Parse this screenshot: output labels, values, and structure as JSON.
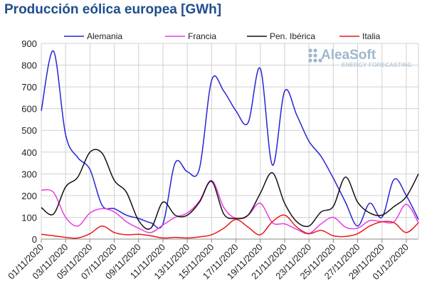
{
  "chart_data": {
    "type": "line",
    "title": "Producción eólica europea [GWh]",
    "xlabel": "",
    "ylabel": "",
    "ylim": [
      0,
      900
    ],
    "yticks": [
      "0",
      "100",
      "200",
      "300",
      "400",
      "500",
      "600",
      "700",
      "800",
      "900"
    ],
    "grid": true,
    "legend_position": "top",
    "xtick_labels": [
      "01/11/2020",
      "03/11/2020",
      "05/11/2020",
      "07/11/2020",
      "09/11/2020",
      "11/11/2020",
      "13/11/2020",
      "15/11/2020",
      "17/11/2020",
      "19/11/2020",
      "21/11/2020",
      "23/11/2020",
      "25/11/2020",
      "27/11/2020",
      "29/11/2020",
      "01/12/2020"
    ],
    "x": [
      "01/11/2020",
      "02/11/2020",
      "03/11/2020",
      "04/11/2020",
      "05/11/2020",
      "06/11/2020",
      "07/11/2020",
      "08/11/2020",
      "09/11/2020",
      "10/11/2020",
      "11/11/2020",
      "12/11/2020",
      "13/11/2020",
      "14/11/2020",
      "15/11/2020",
      "16/11/2020",
      "17/11/2020",
      "18/11/2020",
      "19/11/2020",
      "20/11/2020",
      "21/11/2020",
      "22/11/2020",
      "23/11/2020",
      "24/11/2020",
      "25/11/2020",
      "26/11/2020",
      "27/11/2020",
      "28/11/2020",
      "29/11/2020",
      "30/11/2020",
      "01/12/2020",
      "02/12/2020"
    ],
    "series": [
      {
        "name": "Alemania",
        "color": "#2424d6",
        "values": [
          590,
          865,
          480,
          375,
          320,
          155,
          140,
          110,
          95,
          75,
          70,
          350,
          310,
          325,
          730,
          680,
          590,
          535,
          785,
          340,
          680,
          570,
          450,
          380,
          280,
          170,
          60,
          165,
          100,
          275,
          200,
          90
        ]
      },
      {
        "name": "Francia",
        "color": "#e83ce0",
        "values": [
          225,
          215,
          100,
          60,
          120,
          140,
          125,
          80,
          50,
          30,
          65,
          100,
          120,
          175,
          270,
          145,
          95,
          110,
          165,
          75,
          70,
          45,
          25,
          70,
          100,
          55,
          50,
          85,
          80,
          80,
          160,
          75
        ]
      },
      {
        "name": "Pen. Ibérica",
        "color": "#111111",
        "values": [
          145,
          115,
          240,
          285,
          400,
          395,
          270,
          215,
          85,
          50,
          170,
          110,
          110,
          170,
          265,
          115,
          95,
          110,
          210,
          305,
          165,
          80,
          60,
          125,
          150,
          285,
          170,
          120,
          110,
          150,
          195,
          300
        ]
      },
      {
        "name": "Italia",
        "color": "#e81a1a",
        "values": [
          22,
          15,
          8,
          5,
          25,
          60,
          30,
          20,
          22,
          15,
          5,
          8,
          5,
          10,
          20,
          50,
          90,
          55,
          20,
          80,
          110,
          55,
          25,
          40,
          15,
          12,
          25,
          60,
          80,
          75,
          30,
          75
        ]
      }
    ]
  },
  "logo": {
    "name": "AleaSoft",
    "tagline": "ENERGY FORECASTING",
    "color": "#9fb6cf"
  }
}
